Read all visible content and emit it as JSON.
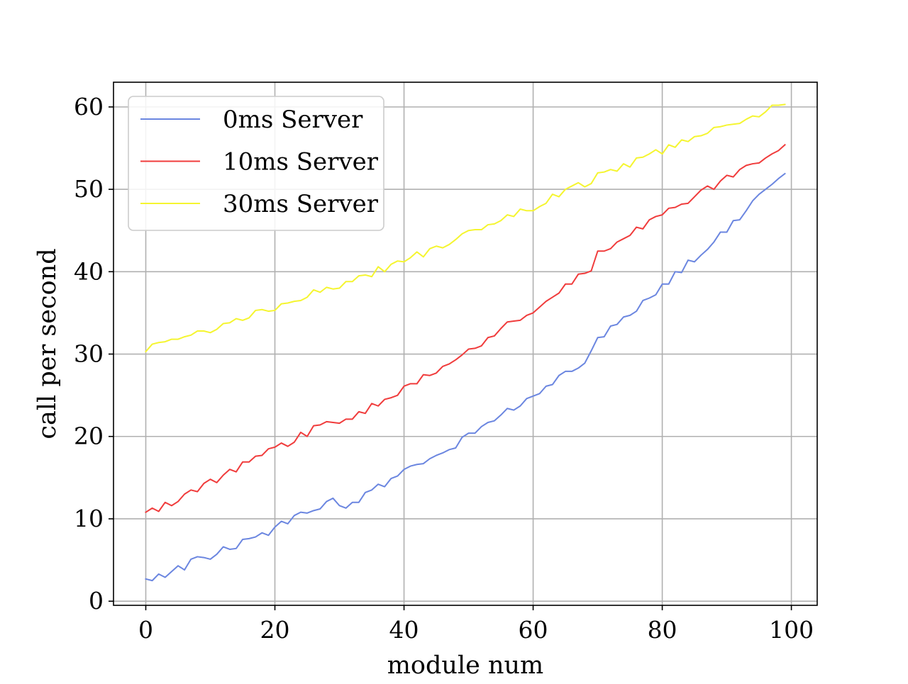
{
  "chart_data": {
    "type": "line",
    "title": "",
    "xlabel": "module num",
    "ylabel": "call per second",
    "xlim": [
      -5,
      104
    ],
    "ylim": [
      -0.5,
      63
    ],
    "x_ticks": [
      0,
      20,
      40,
      60,
      80,
      100
    ],
    "y_ticks": [
      0,
      10,
      20,
      30,
      40,
      50,
      60
    ],
    "grid": true,
    "legend_position": "top-left",
    "x": [
      0,
      1,
      2,
      3,
      4,
      5,
      6,
      7,
      8,
      9,
      10,
      11,
      12,
      13,
      14,
      15,
      16,
      17,
      18,
      19,
      20,
      21,
      22,
      23,
      24,
      25,
      26,
      27,
      28,
      29,
      30,
      31,
      32,
      33,
      34,
      35,
      36,
      37,
      38,
      39,
      40,
      41,
      42,
      43,
      44,
      45,
      46,
      47,
      48,
      49,
      50,
      51,
      52,
      53,
      54,
      55,
      56,
      57,
      58,
      59,
      60,
      61,
      62,
      63,
      64,
      65,
      66,
      67,
      68,
      69,
      70,
      71,
      72,
      73,
      74,
      75,
      76,
      77,
      78,
      79,
      80,
      81,
      82,
      83,
      84,
      85,
      86,
      87,
      88,
      89,
      90,
      91,
      92,
      93,
      94,
      95,
      96,
      97,
      98,
      99
    ],
    "series": [
      {
        "name": "0ms Server",
        "color": "#6b86e0",
        "values": [
          2.7,
          2.5,
          3.3,
          2.9,
          3.6,
          4.3,
          3.8,
          5.1,
          5.4,
          5.3,
          5.1,
          5.7,
          6.6,
          6.3,
          6.4,
          7.5,
          7.6,
          7.8,
          8.3,
          8.0,
          9.0,
          9.7,
          9.4,
          10.4,
          10.8,
          10.7,
          11.0,
          11.2,
          12.1,
          12.5,
          11.6,
          11.3,
          12.0,
          12.0,
          13.2,
          13.5,
          14.2,
          13.9,
          14.9,
          15.2,
          16.0,
          16.4,
          16.6,
          16.7,
          17.3,
          17.7,
          18.0,
          18.4,
          18.6,
          19.9,
          20.4,
          20.4,
          21.2,
          21.7,
          21.9,
          22.6,
          23.4,
          23.2,
          23.7,
          24.6,
          24.9,
          25.2,
          26.1,
          26.3,
          27.4,
          27.9,
          27.9,
          28.3,
          28.9,
          30.4,
          32.0,
          32.1,
          33.4,
          33.6,
          34.5,
          34.7,
          35.2,
          36.5,
          36.8,
          37.2,
          38.5,
          38.5,
          40.0,
          39.9,
          41.4,
          41.2,
          42.0,
          42.7,
          43.6,
          44.8,
          44.8,
          46.2,
          46.3,
          47.4,
          48.6,
          49.4,
          50.0,
          50.6,
          51.3,
          51.9
        ]
      },
      {
        "name": "10ms Server",
        "color": "#f03c3c",
        "values": [
          10.8,
          11.3,
          10.9,
          12.0,
          11.6,
          12.1,
          13.0,
          13.5,
          13.3,
          14.3,
          14.8,
          14.4,
          15.3,
          16.0,
          15.7,
          16.9,
          16.9,
          17.6,
          17.7,
          18.5,
          18.7,
          19.2,
          18.8,
          19.3,
          20.5,
          20.0,
          21.3,
          21.4,
          21.8,
          21.7,
          21.6,
          22.1,
          22.1,
          23.0,
          22.8,
          24.0,
          23.7,
          24.5,
          24.7,
          25.0,
          26.1,
          26.4,
          26.4,
          27.5,
          27.4,
          27.7,
          28.5,
          28.8,
          29.3,
          29.9,
          30.6,
          30.7,
          31.0,
          32.0,
          32.2,
          33.1,
          33.9,
          34.0,
          34.1,
          34.7,
          35.0,
          35.7,
          36.4,
          36.9,
          37.4,
          38.5,
          38.5,
          39.7,
          39.8,
          40.1,
          42.5,
          42.5,
          42.8,
          43.6,
          44.0,
          44.4,
          45.4,
          45.2,
          46.3,
          46.7,
          46.9,
          47.7,
          47.8,
          48.2,
          48.3,
          49.1,
          49.9,
          50.4,
          50.0,
          51.0,
          51.7,
          51.5,
          52.4,
          52.9,
          53.1,
          53.2,
          53.8,
          54.3,
          54.7,
          55.4
        ]
      },
      {
        "name": "30ms Server",
        "color": "#f5f530",
        "values": [
          30.3,
          31.2,
          31.4,
          31.5,
          31.8,
          31.8,
          32.1,
          32.3,
          32.8,
          32.8,
          32.6,
          33.0,
          33.7,
          33.8,
          34.3,
          34.1,
          34.4,
          35.3,
          35.4,
          35.2,
          35.3,
          36.1,
          36.2,
          36.4,
          36.5,
          36.9,
          37.8,
          37.5,
          38.1,
          37.9,
          38.0,
          38.8,
          38.8,
          39.5,
          39.6,
          39.4,
          40.6,
          40.0,
          40.9,
          41.3,
          41.2,
          41.7,
          42.4,
          41.8,
          42.8,
          43.1,
          42.9,
          43.3,
          43.9,
          44.6,
          45.0,
          45.1,
          45.1,
          45.7,
          45.8,
          46.2,
          46.9,
          46.7,
          47.6,
          47.4,
          47.4,
          47.9,
          48.3,
          49.4,
          49.1,
          50.0,
          50.4,
          50.8,
          50.3,
          50.7,
          52.0,
          52.1,
          52.4,
          52.2,
          53.1,
          52.7,
          53.8,
          53.9,
          54.3,
          54.8,
          54.3,
          55.4,
          55.1,
          56.0,
          55.8,
          56.4,
          56.5,
          56.8,
          57.5,
          57.6,
          57.8,
          57.9,
          58.0,
          58.5,
          58.9,
          58.8,
          59.4,
          60.2,
          60.2,
          60.3
        ]
      }
    ]
  }
}
